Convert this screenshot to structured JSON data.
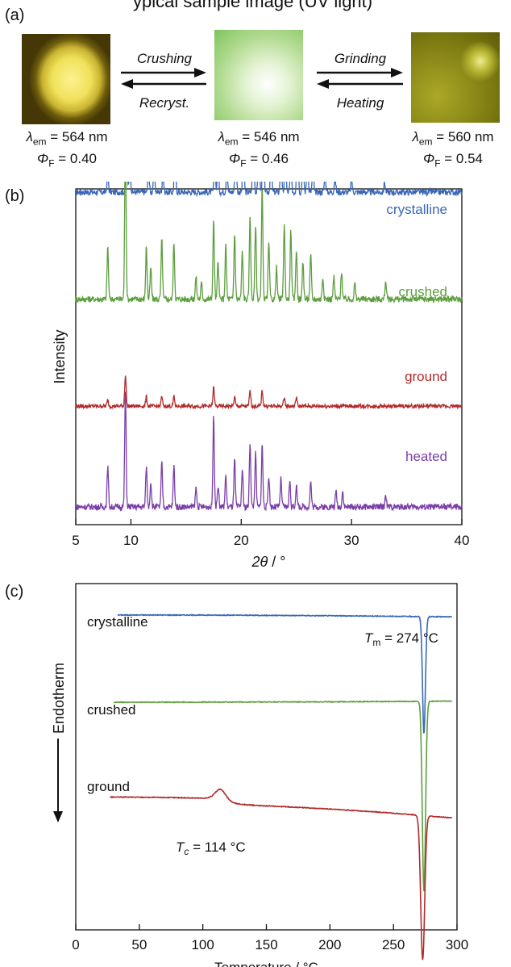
{
  "header_partial": "ypical sample image (UV light)",
  "panel_a": {
    "label": "(a)",
    "states": [
      {
        "lambda_label": "λ",
        "lambda_sub": "em",
        "lambda_value": " = 564 nm",
        "phi_label": "Φ",
        "phi_sub": "F",
        "phi_value": " = 0.40"
      },
      {
        "lambda_label": "λ",
        "lambda_sub": "em",
        "lambda_value": " = 546 nm",
        "phi_label": "Φ",
        "phi_sub": "F",
        "phi_value": " = 0.46"
      },
      {
        "lambda_label": "λ",
        "lambda_sub": "em",
        "lambda_value": " = 560 nm",
        "phi_label": "Φ",
        "phi_sub": "F",
        "phi_value": " = 0.54"
      }
    ],
    "arrows": [
      {
        "forward": "Crushing",
        "reverse": "Recryst."
      },
      {
        "forward": "Grinding",
        "reverse": "Heating"
      }
    ]
  },
  "chart_data": [
    {
      "type": "line",
      "panel_label": "(b)",
      "xlabel_var": "2θ",
      "xlabel_unit": " / °",
      "ylabel": "Intensity",
      "xlim": [
        5,
        40
      ],
      "xticks": [
        5,
        10,
        20,
        30,
        40
      ],
      "grid": false,
      "series": [
        {
          "name": "crystalline",
          "color": "#3a67b6",
          "baseline": 1.0,
          "noise": 0.02,
          "peaks": [
            [
              7.9,
              0.06
            ],
            [
              9.6,
              0.2
            ],
            [
              9.9,
              0.12
            ],
            [
              11.6,
              0.07
            ],
            [
              12.1,
              0.09
            ],
            [
              12.9,
              0.06
            ],
            [
              14.0,
              0.17
            ],
            [
              17.6,
              0.11
            ],
            [
              17.9,
              0.08
            ],
            [
              18.7,
              0.07
            ],
            [
              19.5,
              0.21
            ],
            [
              20.2,
              0.16
            ],
            [
              21.1,
              0.23
            ],
            [
              21.6,
              0.18
            ],
            [
              22.0,
              0.36
            ],
            [
              22.7,
              0.14
            ],
            [
              23.6,
              0.1
            ],
            [
              24.0,
              0.13
            ],
            [
              24.5,
              0.09
            ],
            [
              25.1,
              0.32
            ],
            [
              25.6,
              0.13
            ],
            [
              26.0,
              0.11
            ],
            [
              26.5,
              0.08
            ],
            [
              27.6,
              0.06
            ],
            [
              28.5,
              0.05
            ],
            [
              30.0,
              0.04
            ],
            [
              33.0,
              0.03
            ]
          ]
        },
        {
          "name": "crushed",
          "color": "#5d9e3e",
          "baseline": 0.66,
          "noise": 0.02,
          "peaks": [
            [
              7.9,
              0.17
            ],
            [
              9.5,
              0.52
            ],
            [
              11.4,
              0.17
            ],
            [
              11.8,
              0.1
            ],
            [
              12.8,
              0.19
            ],
            [
              13.9,
              0.18
            ],
            [
              15.9,
              0.07
            ],
            [
              16.4,
              0.05
            ],
            [
              17.5,
              0.25
            ],
            [
              17.9,
              0.12
            ],
            [
              18.6,
              0.17
            ],
            [
              19.4,
              0.21
            ],
            [
              20.1,
              0.15
            ],
            [
              20.8,
              0.27
            ],
            [
              21.3,
              0.24
            ],
            [
              21.9,
              0.36
            ],
            [
              22.5,
              0.18
            ],
            [
              23.2,
              0.1
            ],
            [
              23.9,
              0.24
            ],
            [
              24.5,
              0.22
            ],
            [
              25.0,
              0.16
            ],
            [
              25.6,
              0.12
            ],
            [
              26.3,
              0.14
            ],
            [
              27.4,
              0.07
            ],
            [
              28.4,
              0.07
            ],
            [
              29.1,
              0.09
            ],
            [
              30.3,
              0.05
            ],
            [
              33.1,
              0.06
            ]
          ]
        },
        {
          "name": "ground",
          "color": "#b22a2a",
          "baseline": 0.32,
          "noise": 0.012,
          "peaks": [
            [
              7.9,
              0.02
            ],
            [
              9.5,
              0.1
            ],
            [
              11.4,
              0.03
            ],
            [
              12.8,
              0.03
            ],
            [
              13.9,
              0.03
            ],
            [
              17.5,
              0.06
            ],
            [
              19.4,
              0.03
            ],
            [
              20.8,
              0.05
            ],
            [
              21.9,
              0.05
            ],
            [
              23.9,
              0.03
            ],
            [
              25.0,
              0.03
            ]
          ]
        },
        {
          "name": "heated",
          "color": "#7b3fa9",
          "baseline": 0.0,
          "noise": 0.02,
          "peaks": [
            [
              7.9,
              0.13
            ],
            [
              9.5,
              0.37
            ],
            [
              11.4,
              0.13
            ],
            [
              11.8,
              0.08
            ],
            [
              12.8,
              0.14
            ],
            [
              13.9,
              0.13
            ],
            [
              15.9,
              0.06
            ],
            [
              17.5,
              0.29
            ],
            [
              17.9,
              0.07
            ],
            [
              18.6,
              0.1
            ],
            [
              19.4,
              0.15
            ],
            [
              20.1,
              0.12
            ],
            [
              20.8,
              0.21
            ],
            [
              21.3,
              0.17
            ],
            [
              21.9,
              0.2
            ],
            [
              22.5,
              0.1
            ],
            [
              23.6,
              0.09
            ],
            [
              24.4,
              0.08
            ],
            [
              25.0,
              0.07
            ],
            [
              26.3,
              0.08
            ],
            [
              28.6,
              0.05
            ],
            [
              29.2,
              0.05
            ],
            [
              33.1,
              0.04
            ]
          ]
        }
      ]
    },
    {
      "type": "line",
      "panel_label": "(c)",
      "xlabel": "Temperature / °C",
      "ylabel": "Endotherm",
      "xlim": [
        0,
        300
      ],
      "xticks": [
        0,
        50,
        100,
        150,
        200,
        250,
        300
      ],
      "grid": false,
      "annotations": [
        {
          "var": "T",
          "sub": "m",
          "text": " = 274 °C",
          "x": 274
        },
        {
          "var": "T",
          "sub": "c",
          "text": " = 114 °C",
          "x": 114
        }
      ],
      "series": [
        {
          "name": "crystalline",
          "color": "#3a67b6",
          "x_start": 33,
          "x_end": 296,
          "baseline": 0.83,
          "drift": -0.005,
          "dip_x": 274,
          "dip_depth": 0.31,
          "dip_width": 1.6
        },
        {
          "name": "crushed",
          "color": "#5d9e3e",
          "x_start": 30,
          "x_end": 296,
          "baseline": 0.6,
          "drift": 0.003,
          "dip_x": 274,
          "dip_depth": 0.5,
          "dip_width": 1.8
        },
        {
          "name": "ground",
          "color": "#b22a2a",
          "x_start": 27,
          "x_end": 296,
          "baseline": 0.35,
          "drift": -0.04,
          "dip_x": 273,
          "dip_depth": 0.38,
          "dip_width": 2.2,
          "exo_x": 114,
          "exo_height": 0.025,
          "exo_width": 6,
          "step_after": -0.015
        }
      ]
    }
  ]
}
